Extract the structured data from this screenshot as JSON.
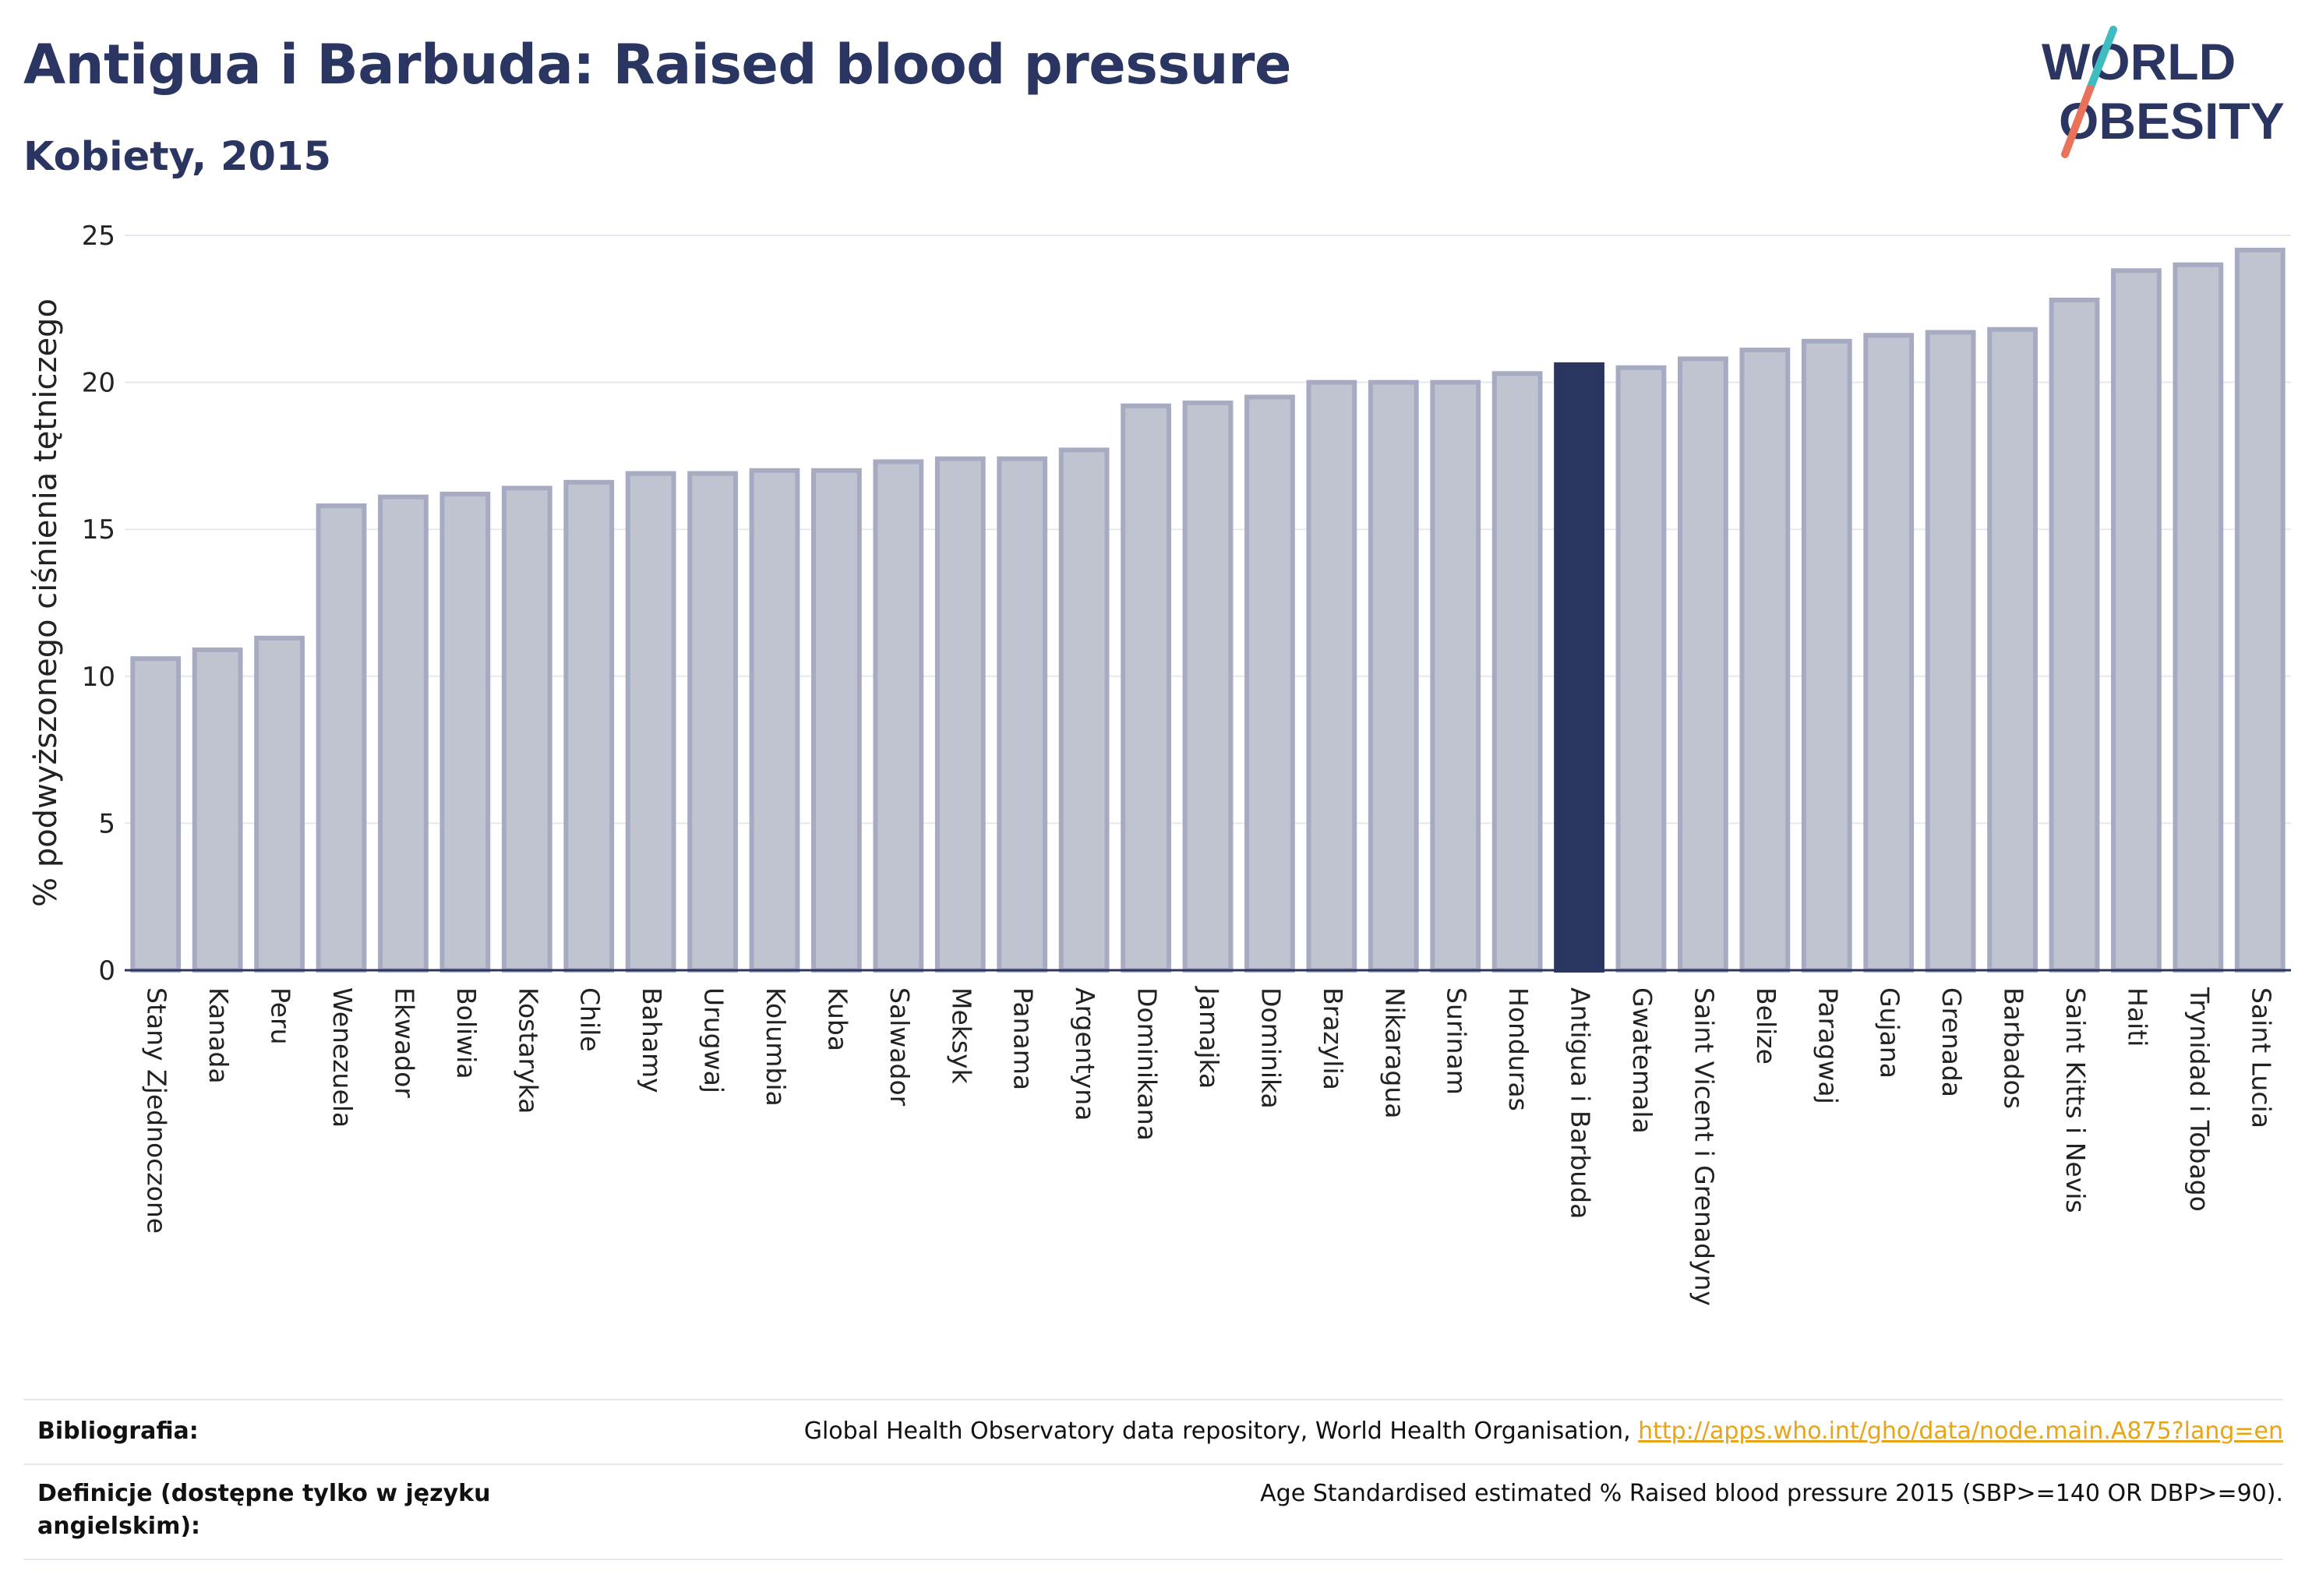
{
  "header": {
    "title": "Antigua i Barbuda: Raised blood pressure",
    "subtitle": "Kobiety, 2015"
  },
  "logo": {
    "line1": "WORLD",
    "line2": "OBESITY"
  },
  "chart_data": {
    "type": "bar",
    "ylabel": "% podwyższonego ciśnienia tętniczego",
    "ylim": [
      0,
      25
    ],
    "yticks": [
      0,
      5,
      10,
      15,
      20,
      25
    ],
    "highlight": "Antigua i Barbuda",
    "categories": [
      "Stany Zjednoczone",
      "Kanada",
      "Peru",
      "Wenezuela",
      "Ekwador",
      "Boliwia",
      "Kostaryka",
      "Chile",
      "Bahamy",
      "Urugwaj",
      "Kolumbia",
      "Kuba",
      "Salwador",
      "Meksyk",
      "Panama",
      "Argentyna",
      "Dominikana",
      "Jamajka",
      "Dominika",
      "Brazylia",
      "Nikaragua",
      "Surinam",
      "Honduras",
      "Antigua i Barbuda",
      "Gwatemala",
      "Saint Vicent i Grenadyny",
      "Belize",
      "Paragwaj",
      "Gujana",
      "Grenada",
      "Barbados",
      "Saint Kitts i Nevis",
      "Haiti",
      "Trynidad i Tobago",
      "Saint Lucia"
    ],
    "values": [
      10.6,
      10.9,
      11.3,
      15.8,
      16.1,
      16.2,
      16.4,
      16.6,
      16.9,
      16.9,
      17.0,
      17.0,
      17.3,
      17.4,
      17.4,
      17.7,
      19.2,
      19.3,
      19.5,
      20.0,
      20.0,
      20.0,
      20.3,
      20.6,
      20.5,
      20.8,
      21.1,
      21.4,
      21.6,
      21.7,
      21.8,
      22.8,
      23.8,
      24.0,
      24.5
    ]
  },
  "colors": {
    "bar": "#c0c4d0",
    "bar_border": "#a6abc2",
    "highlight": "#2b3561",
    "grid": "#e6e8f0",
    "title": "#2b3561",
    "link": "#e8a317"
  },
  "footer": {
    "bibliography_label": "Bibliografia:",
    "bibliography_text": "Global Health Observatory data repository, World Health Organisation, ",
    "bibliography_link": "http://apps.who.int/gho/data/node.main.A875?lang=en",
    "definitions_label": "Definicje (dostępne tylko w języku angielskim):",
    "definitions_text": "Age Standardised estimated % Raised blood pressure 2015 (SBP>=140 OR DBP>=90)."
  }
}
